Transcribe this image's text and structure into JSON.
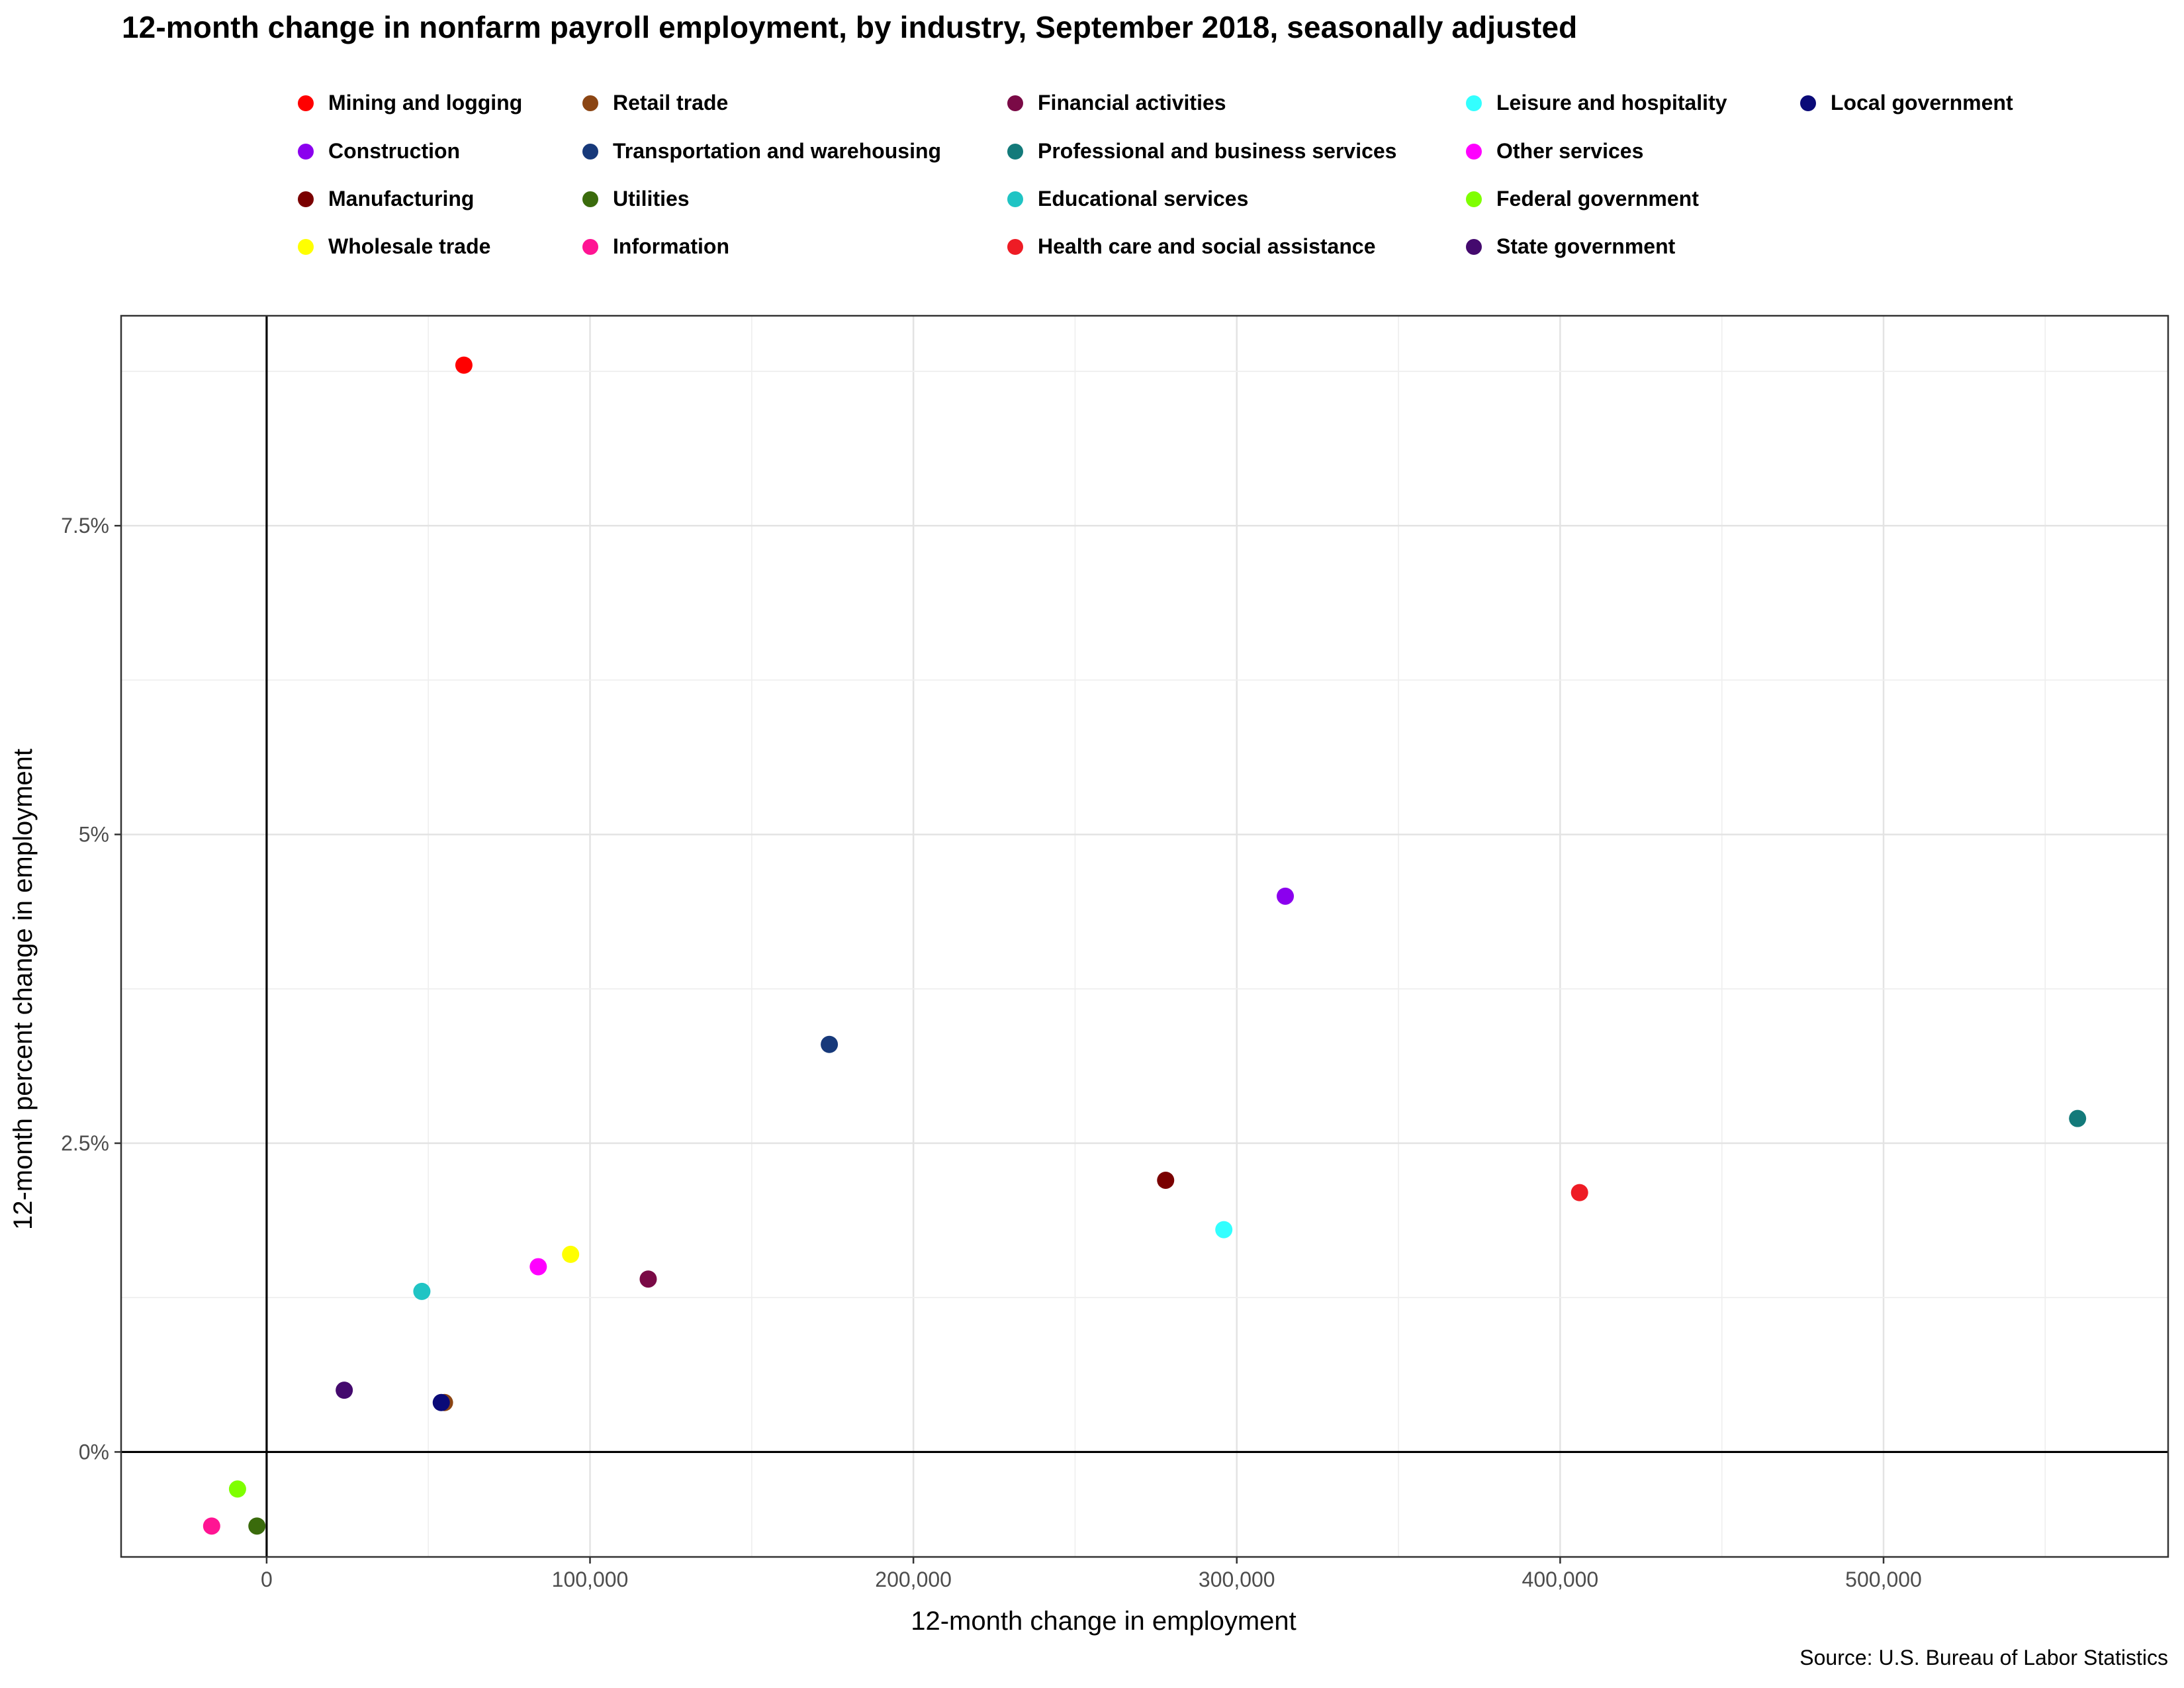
{
  "chart_data": {
    "type": "scatter",
    "title": "12-month change in nonfarm payroll employment, by industry, September 2018, seasonally adjusted",
    "xlabel": "12-month change in employment",
    "ylabel": "12-month percent change in employment",
    "source": "Source: U.S. Bureau of Labor Statistics",
    "xlim": [
      -45000,
      588000
    ],
    "ylim": [
      -0.85,
      9.2
    ],
    "x_ticks": [
      0,
      100000,
      200000,
      300000,
      400000,
      500000
    ],
    "x_tick_labels": [
      "0",
      "100,000",
      "200,000",
      "300,000",
      "400,000",
      "500,000"
    ],
    "y_ticks": [
      0,
      2.5,
      5,
      7.5
    ],
    "y_tick_labels": [
      "0%",
      "2.5%",
      "5%",
      "7.5%"
    ],
    "grid": true,
    "legend_position": "top",
    "series": [
      {
        "name": "Mining and logging",
        "color": "#FF0000",
        "x": 61000,
        "y": 8.8
      },
      {
        "name": "Construction",
        "color": "#8B00EE",
        "x": 315000,
        "y": 4.5
      },
      {
        "name": "Manufacturing",
        "color": "#7A0000",
        "x": 278000,
        "y": 2.2
      },
      {
        "name": "Wholesale trade",
        "color": "#FFFF00",
        "x": 94000,
        "y": 1.6
      },
      {
        "name": "Retail trade",
        "color": "#8B4513",
        "x": 55000,
        "y": 0.4
      },
      {
        "name": "Transportation and warehousing",
        "color": "#17397A",
        "x": 174000,
        "y": 3.3
      },
      {
        "name": "Utilities",
        "color": "#3A6B0C",
        "x": -3000,
        "y": -0.6
      },
      {
        "name": "Information",
        "color": "#FF1493",
        "x": -17000,
        "y": -0.6
      },
      {
        "name": "Financial activities",
        "color": "#7A0A46",
        "x": 118000,
        "y": 1.4
      },
      {
        "name": "Professional and business services",
        "color": "#137A7A",
        "x": 560000,
        "y": 2.7
      },
      {
        "name": "Educational services",
        "color": "#20C4C4",
        "x": 48000,
        "y": 1.3
      },
      {
        "name": "Health care and social assistance",
        "color": "#EE1C25",
        "x": 406000,
        "y": 2.1
      },
      {
        "name": "Leisure and hospitality",
        "color": "#33FFFF",
        "x": 296000,
        "y": 1.8
      },
      {
        "name": "Other services",
        "color": "#FF00FF",
        "x": 84000,
        "y": 1.5
      },
      {
        "name": "Federal government",
        "color": "#7FFF00",
        "x": -9000,
        "y": -0.3
      },
      {
        "name": "State government",
        "color": "#440A6E",
        "x": 24000,
        "y": 0.5
      },
      {
        "name": "Local government",
        "color": "#0A0A78",
        "x": 54000,
        "y": 0.4
      }
    ]
  }
}
